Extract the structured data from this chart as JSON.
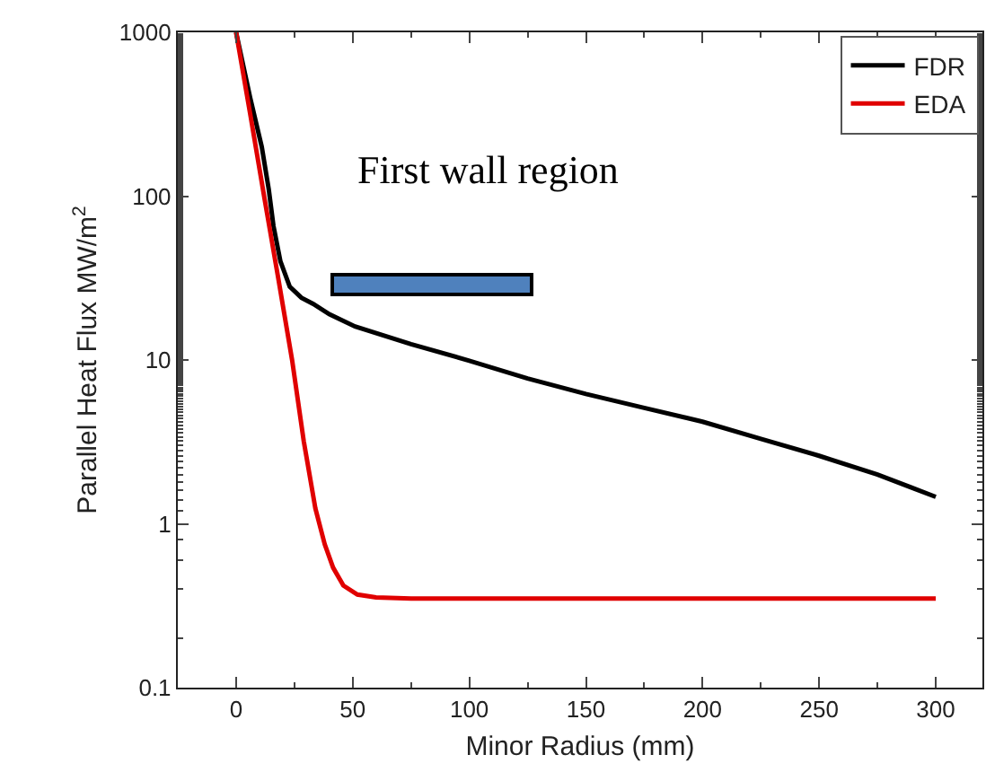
{
  "chart_data": {
    "type": "line",
    "xlabel": "Minor Radius (mm)",
    "ylabel": "Parallel Heat Flux MW/m$^{2}$",
    "log": "y",
    "xlim": [
      -25,
      320
    ],
    "xticks": [
      0,
      50,
      100,
      150,
      200,
      250,
      300
    ],
    "ylim": [
      0.1,
      1000
    ],
    "yticks": [
      0.1,
      1,
      10,
      100,
      1000
    ],
    "grid": false,
    "legend": "top right",
    "line_style": "solid",
    "marker": "none",
    "series": [
      {
        "name": "FDR",
        "color": "#000000",
        "x": [
          0,
          6,
          11,
          14,
          16,
          19,
          23,
          28,
          33,
          40,
          51,
          75,
          100,
          125,
          150,
          175,
          200,
          225,
          250,
          275,
          300
        ],
        "values": [
          1000,
          400,
          200,
          110,
          66,
          40,
          28,
          24,
          22,
          19,
          16,
          12.5,
          9.9,
          7.7,
          6.2,
          5.1,
          4.2,
          3.3,
          2.6,
          2.0,
          1.46
        ]
      },
      {
        "name": "EDA",
        "color": "#e00000",
        "x": [
          0,
          6,
          12,
          18,
          24,
          29,
          34,
          38,
          41.6,
          46,
          52,
          60,
          75,
          100,
          150,
          200,
          250,
          300
        ],
        "values": [
          1000,
          320,
          100,
          32,
          10,
          3.2,
          1.24,
          0.75,
          0.54,
          0.42,
          0.37,
          0.355,
          0.35,
          0.35,
          0.35,
          0.35,
          0.35,
          0.35
        ]
      }
    ],
    "annotations": [
      "First wall region"
    ]
  }
}
